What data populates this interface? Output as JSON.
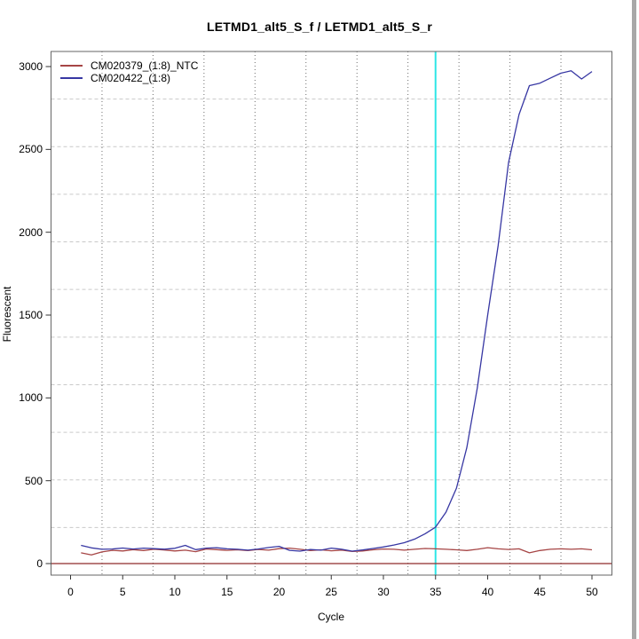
{
  "title": "LETMD1_alt5_S_f / LETMD1_alt5_S_r",
  "legend": {
    "items": [
      {
        "label": "CM020379_(1:8)_NTC",
        "color": "#A64545"
      },
      {
        "label": "CM020422_(1:8)",
        "color": "#3737A3"
      }
    ]
  },
  "chart_data": {
    "type": "line",
    "title": "LETMD1_alt5_S_f / LETMD1_alt5_S_r",
    "xlabel": "Cycle",
    "ylabel": "Fluorescent",
    "x_ticks": [
      0,
      5,
      10,
      15,
      20,
      25,
      30,
      35,
      40,
      45,
      50
    ],
    "y_ticks": [
      0,
      500,
      1000,
      1500,
      2000,
      2500,
      3000
    ],
    "xlim": [
      -2,
      52
    ],
    "ylim": [
      -70,
      3090
    ],
    "grid": {
      "vertical": {
        "style": "dotted",
        "color": "#6e6e6e",
        "cells": 11
      },
      "horizontal": {
        "style": "dashed",
        "color": "#c9c9c9",
        "cells": 11
      }
    },
    "threshold_vline": {
      "x": 35,
      "color": "#2EE6E6"
    },
    "baseline_hline": {
      "y": 0,
      "color": "#8F2B2B"
    },
    "box_color": "#666666",
    "legend_position": "top-left",
    "x": [
      1,
      2,
      3,
      4,
      5,
      6,
      7,
      8,
      9,
      10,
      11,
      12,
      13,
      14,
      15,
      16,
      17,
      18,
      19,
      20,
      21,
      22,
      23,
      24,
      25,
      26,
      27,
      28,
      29,
      30,
      31,
      32,
      33,
      34,
      35,
      36,
      37,
      38,
      39,
      40,
      41,
      42,
      43,
      44,
      45,
      46,
      47,
      48,
      49,
      50
    ],
    "series": [
      {
        "name": "CM020379_(1:8)_NTC",
        "color": "#A64545",
        "values": [
          65,
          52,
          70,
          80,
          76,
          84,
          79,
          86,
          82,
          76,
          81,
          72,
          88,
          84,
          80,
          83,
          78,
          85,
          81,
          90,
          93,
          86,
          79,
          83,
          77,
          81,
          73,
          76,
          83,
          88,
          86,
          81,
          86,
          91,
          89,
          86,
          83,
          79,
          86,
          96,
          89,
          85,
          89,
          65,
          79,
          86,
          89,
          86,
          89,
          83
        ]
      },
      {
        "name": "CM020422_(1:8)",
        "color": "#3737A3",
        "values": [
          110,
          95,
          86,
          88,
          94,
          88,
          93,
          90,
          87,
          92,
          110,
          84,
          93,
          96,
          89,
          86,
          81,
          88,
          97,
          104,
          80,
          75,
          85,
          81,
          93,
          86,
          75,
          82,
          91,
          100,
          112,
          126,
          148,
          180,
          220,
          310,
          455,
          700,
          1060,
          1500,
          1920,
          2420,
          2710,
          2885,
          2900,
          2930,
          2960,
          2975,
          2925,
          2970
        ]
      }
    ]
  }
}
